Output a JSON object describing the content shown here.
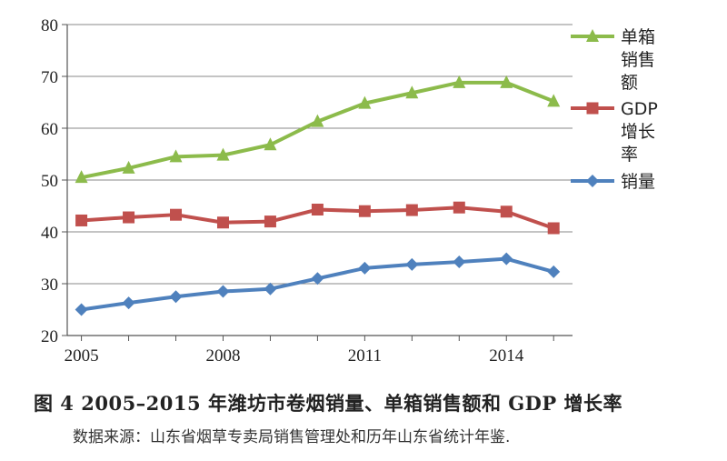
{
  "figure": {
    "caption": "图 4  2005–2015 年潍坊市卷烟销量、单箱销售额和 GDP 增长率",
    "source": "数据来源：山东省烟草专卖局销售管理处和历年山东省统计年鉴."
  },
  "chart_data": {
    "type": "line",
    "title": "",
    "xlabel": "",
    "ylabel": "",
    "x": [
      2005,
      2006,
      2007,
      2008,
      2009,
      2010,
      2011,
      2012,
      2013,
      2014,
      2015
    ],
    "xlim": [
      2004.7,
      2015.4
    ],
    "ylim": [
      20,
      80
    ],
    "x_ticks": [
      "2005",
      "2008",
      "2011",
      "2014"
    ],
    "x_tick_values": [
      2005,
      2008,
      2011,
      2014
    ],
    "y_ticks": [
      "20",
      "30",
      "40",
      "50",
      "60",
      "70",
      "80"
    ],
    "y_tick_values": [
      20,
      30,
      40,
      50,
      60,
      70,
      80
    ],
    "grid": "horizontal",
    "legend_position": "right",
    "series": [
      {
        "name": "单箱销售额",
        "legend_lines": [
          "单箱",
          "销售",
          "额"
        ],
        "color": "#8cbb4b",
        "marker": "triangle",
        "values": [
          50.5,
          52.3,
          54.5,
          54.8,
          56.8,
          61.3,
          64.8,
          66.8,
          68.8,
          68.8,
          65.2
        ]
      },
      {
        "name": "GDP增长率",
        "legend_lines": [
          "GDP",
          "增长",
          "率"
        ],
        "color": "#c0504d",
        "marker": "square",
        "values": [
          42.2,
          42.8,
          43.3,
          41.8,
          42.0,
          44.3,
          44.0,
          44.2,
          44.7,
          43.9,
          40.7
        ]
      },
      {
        "name": "销量",
        "legend_lines": [
          "销量"
        ],
        "color": "#4f81bd",
        "marker": "diamond",
        "values": [
          25.0,
          26.3,
          27.5,
          28.5,
          29.0,
          31.0,
          33.0,
          33.7,
          34.2,
          34.8,
          32.3
        ]
      }
    ]
  }
}
